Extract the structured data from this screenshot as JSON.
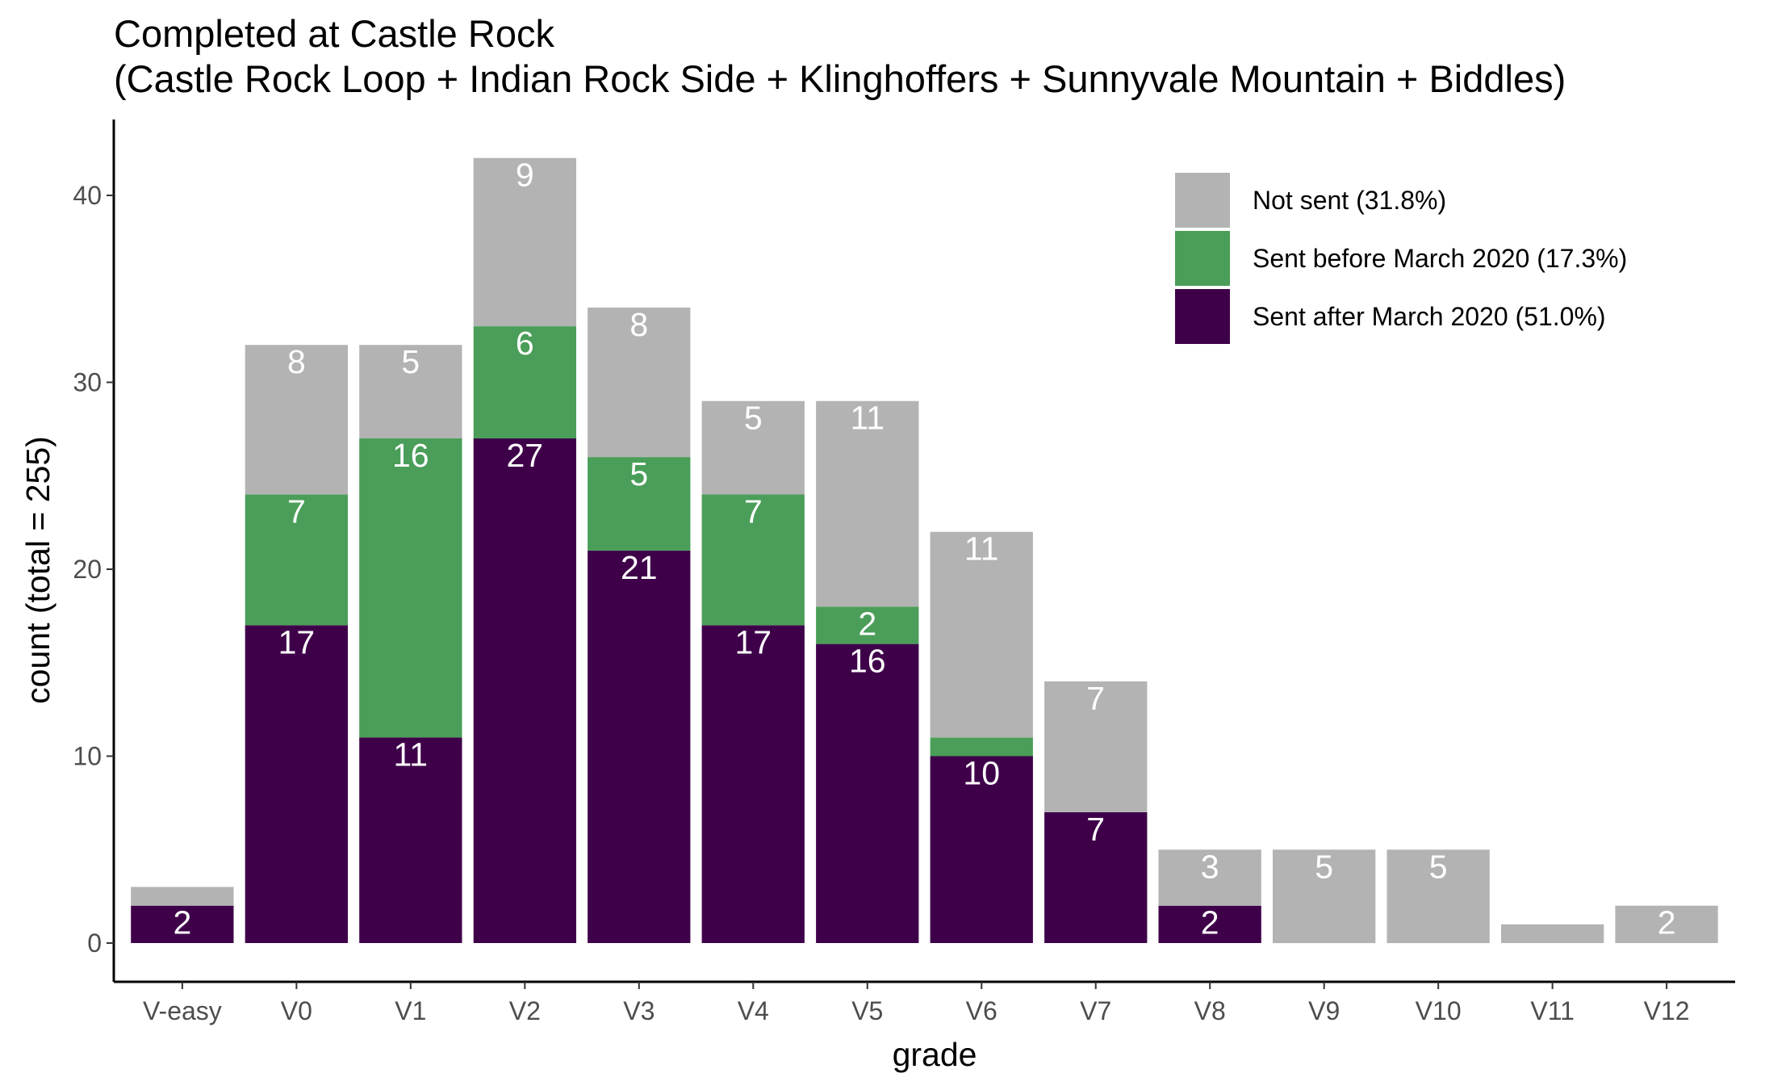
{
  "chart_data": {
    "type": "bar",
    "stacked": true,
    "title": "Completed at Castle Rock",
    "subtitle": "(Castle Rock Loop + Indian Rock Side + Klinghoffers + Sunnyvale Mountain + Biddles)",
    "xlabel": "grade",
    "ylabel": "count (total = 255)",
    "ylim": [
      0,
      43
    ],
    "yticks": [
      0,
      10,
      20,
      30,
      40
    ],
    "categories": [
      "V-easy",
      "V0",
      "V1",
      "V2",
      "V3",
      "V4",
      "V5",
      "V6",
      "V7",
      "V8",
      "V9",
      "V10",
      "V11",
      "V12"
    ],
    "series": [
      {
        "name": "Sent after March 2020 (51.0%)",
        "color": "#3f004a",
        "values": [
          2,
          17,
          11,
          27,
          21,
          17,
          16,
          10,
          7,
          2,
          0,
          0,
          0,
          0
        ],
        "labels": [
          "2",
          "17",
          "11",
          "27",
          "21",
          "17",
          "16",
          "10",
          "7",
          "2",
          "",
          "",
          "",
          ""
        ]
      },
      {
        "name": "Sent before March 2020 (17.3%)",
        "color": "#4a9e59",
        "values": [
          0,
          7,
          16,
          6,
          5,
          7,
          2,
          1,
          0,
          0,
          0,
          0,
          0,
          0
        ],
        "labels": [
          "",
          "7",
          "16",
          "6",
          "5",
          "7",
          "2",
          "",
          "",
          "",
          "",
          "",
          "",
          ""
        ]
      },
      {
        "name": "Not sent (31.8%)",
        "color": "#b3b3b3",
        "values": [
          1,
          8,
          5,
          9,
          8,
          5,
          11,
          11,
          7,
          3,
          5,
          5,
          1,
          2
        ],
        "labels": [
          "",
          "8",
          "5",
          "9",
          "8",
          "5",
          "11",
          "11",
          "7",
          "3",
          "5",
          "5",
          "",
          "2"
        ]
      }
    ],
    "legend": {
      "position": "top-right",
      "order": [
        "Not sent (31.8%)",
        "Sent before March 2020 (17.3%)",
        "Sent after March 2020 (51.0%)"
      ]
    },
    "grid": false
  }
}
